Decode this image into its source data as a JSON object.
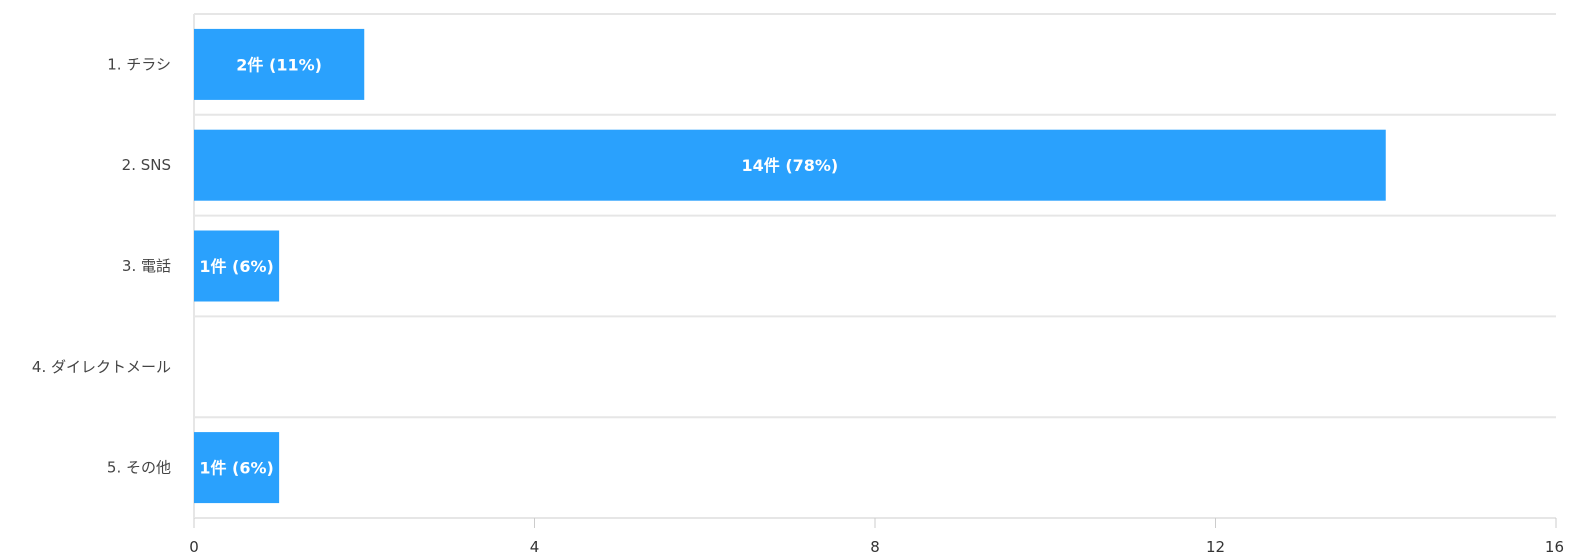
{
  "chart_data": {
    "type": "bar",
    "orientation": "horizontal",
    "categories": [
      "1. チラシ",
      "2. SNS",
      "3. 電話",
      "4. ダイレクトメール",
      "5. その他"
    ],
    "values": [
      2,
      14,
      1,
      0,
      1
    ],
    "data_labels": [
      "2件 (11%)",
      "14件 (78%)",
      "1件 (6%)",
      "",
      "1件 (6%)"
    ],
    "xlim": [
      0,
      16
    ],
    "x_ticks": [
      0,
      4,
      8,
      12,
      16
    ],
    "x_tick_labels": [
      "0",
      "4",
      "8",
      "12",
      "16"
    ],
    "grid": true,
    "bar_color": "#2aa1fd"
  }
}
